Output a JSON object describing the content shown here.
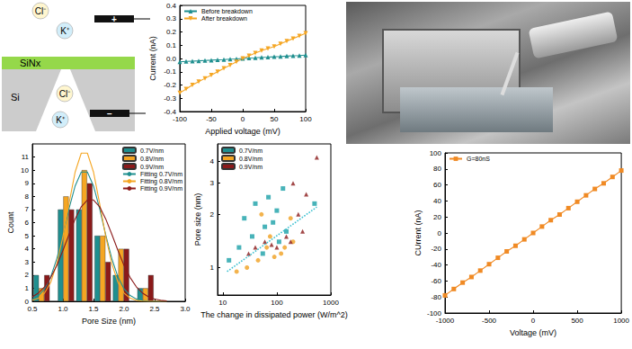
{
  "chart_data": [
    {
      "type": "line",
      "x_label": "Applied voltage (mV)",
      "y_label": "Current (nA)",
      "x": [
        -100,
        -90,
        -80,
        -70,
        -60,
        -50,
        -40,
        -30,
        -20,
        -10,
        0,
        10,
        20,
        30,
        40,
        50,
        60,
        70,
        80,
        90,
        100
      ],
      "series": [
        {
          "name": "Before breakdown",
          "color": "#1f8f8f",
          "marker": "triangle_up",
          "values": [
            -0.025,
            -0.022,
            -0.02,
            -0.018,
            -0.015,
            -0.013,
            -0.01,
            -0.008,
            -0.005,
            -0.003,
            0,
            0.003,
            0.005,
            0.008,
            0.01,
            0.013,
            0.015,
            0.018,
            0.02,
            0.022,
            0.025
          ]
        },
        {
          "name": "After breakdown",
          "color": "#f5a623",
          "marker": "triangle_down",
          "values": [
            -0.26,
            -0.23,
            -0.2,
            -0.175,
            -0.15,
            -0.125,
            -0.1,
            -0.075,
            -0.05,
            -0.025,
            0,
            0.02,
            0.04,
            0.06,
            0.075,
            0.09,
            0.11,
            0.13,
            0.15,
            0.17,
            0.19
          ]
        }
      ],
      "xlim": [
        -100,
        100
      ],
      "xticks": [
        -100,
        -50,
        0,
        50,
        100
      ],
      "ylim": [
        -0.4,
        0.4
      ],
      "yticks": [
        -0.4,
        -0.3,
        -0.2,
        -0.1,
        {
          "value": 0,
          "label": "0.0"
        },
        0.1,
        0.2,
        0.3,
        0.4
      ],
      "legend": "upper left"
    },
    {
      "type": "bar",
      "x_label": "Pore Size (nm)",
      "y_label": "Count",
      "x": [
        0.65,
        1.05,
        1.35,
        1.65,
        1.95,
        2.35
      ],
      "series": [
        {
          "name": "0.7V/nm",
          "color": "#1f8f8f",
          "values": [
            2,
            7,
            7,
            5,
            2,
            1
          ]
        },
        {
          "name": "0.8V/nm",
          "color": "#f5a623",
          "values": [
            1,
            8,
            10,
            5,
            4,
            1
          ]
        },
        {
          "name": "0.9V/nm",
          "color": "#8b1a1a",
          "values": [
            2,
            7,
            9,
            3,
            4,
            2
          ]
        },
        {
          "name": "Fitting 0.7V/nm",
          "type": "line",
          "color": "#1f8f8f",
          "x": [
            0.5,
            0.6,
            0.7,
            0.8,
            0.9,
            1.0,
            1.1,
            1.2,
            1.3,
            1.4,
            1.5,
            1.6,
            1.7,
            1.8,
            1.9,
            2.0,
            2.1,
            2.2,
            2.3,
            2.4,
            2.5,
            2.6,
            2.7
          ],
          "values": [
            0.18,
            0.44,
            0.95,
            1.86,
            3.25,
            5.06,
            7.07,
            8.8,
            9.86,
            9.86,
            8.8,
            7.07,
            5.06,
            3.25,
            1.86,
            0.95,
            0.44,
            0.18,
            0.07,
            0.02,
            0,
            0,
            0
          ]
        },
        {
          "name": "Fitting 0.8V/nm",
          "type": "line",
          "color": "#f5a623",
          "x": [
            0.5,
            0.6,
            0.7,
            0.8,
            0.9,
            1.0,
            1.1,
            1.2,
            1.3,
            1.4,
            1.5,
            1.6,
            1.7,
            1.8,
            1.9,
            2.0,
            2.1,
            2.2,
            2.3,
            2.4,
            2.5,
            2.6,
            2.7
          ],
          "values": [
            0.08,
            0.24,
            0.63,
            1.44,
            2.87,
            4.95,
            7.47,
            9.86,
            11.3,
            11.3,
            9.86,
            7.47,
            4.95,
            2.87,
            1.44,
            0.63,
            0.24,
            0.08,
            0.02,
            0,
            0,
            0,
            0
          ]
        },
        {
          "name": "Fitting 0.9V/nm",
          "type": "line",
          "color": "#8b1a1a",
          "x": [
            0.5,
            0.6,
            0.7,
            0.8,
            0.9,
            1.0,
            1.1,
            1.2,
            1.3,
            1.4,
            1.5,
            1.6,
            1.7,
            1.8,
            1.9,
            2.0,
            2.1,
            2.2,
            2.3,
            2.4,
            2.5,
            2.6,
            2.7
          ],
          "values": [
            0.34,
            0.64,
            1.11,
            1.81,
            2.73,
            3.87,
            5.11,
            6.28,
            7.21,
            7.73,
            7.73,
            7.21,
            6.28,
            5.11,
            3.87,
            2.73,
            1.81,
            1.11,
            0.64,
            0.34,
            0.17,
            0.08,
            0.03
          ]
        }
      ],
      "xlim": [
        0.5,
        3
      ],
      "xticks": [
        0.5,
        {
          "value": 1,
          "label": "1.0"
        },
        1.5,
        {
          "value": 2,
          "label": "2.0"
        },
        2.5,
        {
          "value": 3,
          "label": "3.0"
        }
      ],
      "ylim": [
        0,
        12
      ],
      "yticks": [
        0,
        1,
        2,
        3,
        4,
        5,
        6,
        7,
        8,
        9,
        10,
        11
      ],
      "legend": "upper right"
    },
    {
      "type": "scatter",
      "log": true,
      "x_label": "The change in dissipated power (W/m^2)",
      "y_label": "Pore size (nm)",
      "series": [
        {
          "name": "0.7V/nm",
          "color": "#1aa0a8",
          "marker": "square",
          "x": [
            13,
            20,
            25,
            35,
            40,
            55,
            60,
            70,
            85,
            100,
            110,
            130,
            150,
            500
          ],
          "values": [
            1.1,
            1.3,
            1.9,
            1.5,
            2.3,
            1.2,
            1.7,
            2.5,
            1.8,
            2.1,
            1.4,
            2.8,
            1.6,
            2.3
          ]
        },
        {
          "name": "0.8V/nm",
          "color": "#f0a020",
          "marker": "circle",
          "x": [
            18,
            28,
            45,
            52,
            65,
            75,
            90,
            120,
            140,
            180,
            200
          ],
          "values": [
            0.95,
            1.0,
            1.1,
            2.0,
            1.3,
            1.5,
            1.15,
            1.2,
            1.3,
            1.9,
            1.4
          ]
        },
        {
          "name": "0.9V/nm",
          "color": "#8b1a1a",
          "marker": "triangle_up",
          "x": [
            30,
            40,
            60,
            80,
            100,
            150,
            180,
            200,
            250,
            300,
            350,
            550
          ],
          "values": [
            1.2,
            1.3,
            1.4,
            1.35,
            1.3,
            1.5,
            1.4,
            3.0,
            2.0,
            1.6,
            2.6,
            4.2
          ]
        },
        {
          "type": "line",
          "line_style": "dotted",
          "color": "#3cc0d0",
          "x": [
            12,
            550
          ],
          "values": [
            0.95,
            2.2
          ]
        }
      ],
      "xlim": [
        8,
        1000
      ],
      "xticks": [
        10,
        100,
        1000
      ],
      "ylim": [
        0.7,
        5
      ],
      "yticks": [
        1,
        2,
        3,
        4
      ],
      "legend": "upper left"
    },
    {
      "type": "line",
      "x_label": "Voltage (mV)",
      "y_label": "CUrrent (nA)",
      "x": [
        -1000,
        -900,
        -800,
        -700,
        -600,
        -500,
        -400,
        -300,
        -200,
        -100,
        0,
        100,
        200,
        300,
        400,
        500,
        600,
        700,
        800,
        900,
        1000
      ],
      "series": [
        {
          "name": "G=80nS",
          "color": "#f08a24",
          "marker": "square",
          "values": [
            -78,
            -70,
            -62,
            -55,
            -47,
            -39,
            -31,
            -23,
            -16,
            -8,
            0,
            8,
            16,
            23,
            31,
            39,
            47,
            55,
            62,
            70,
            78
          ]
        }
      ],
      "xlim": [
        -1000,
        1000
      ],
      "xticks": [
        -1000,
        -500,
        0,
        500,
        1000
      ],
      "ylim": [
        -100,
        100
      ],
      "yticks": [
        -100,
        -80,
        -60,
        -40,
        -20,
        0,
        20,
        40,
        60,
        80,
        100
      ],
      "legend": "upper left"
    }
  ],
  "diagram": {
    "layers": [
      {
        "label": "SiNx",
        "color": "#95d84a"
      },
      {
        "label": "Si",
        "color": "#cccccc"
      }
    ],
    "ions": [
      "Cl⁻",
      "K⁺",
      "Cl⁻",
      "K⁺"
    ],
    "electrodes": [
      "+",
      "−"
    ]
  }
}
